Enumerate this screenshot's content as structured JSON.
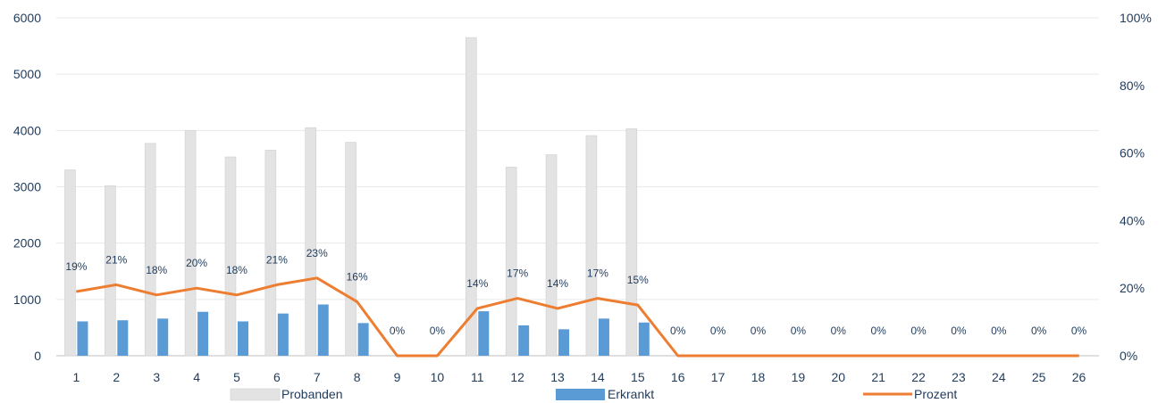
{
  "chart_data": {
    "type": "bar",
    "categories": [
      "1",
      "2",
      "3",
      "4",
      "5",
      "6",
      "7",
      "8",
      "9",
      "10",
      "11",
      "12",
      "13",
      "14",
      "15",
      "16",
      "17",
      "18",
      "19",
      "20",
      "21",
      "22",
      "23",
      "24",
      "25",
      "26"
    ],
    "series": [
      {
        "name": "Probanden",
        "kind": "bar",
        "axis": "left",
        "color": "#e3e3e3",
        "values": [
          3300,
          3020,
          3770,
          4000,
          3530,
          3650,
          4050,
          3790,
          0,
          0,
          5650,
          3350,
          3570,
          3910,
          4030,
          0,
          0,
          0,
          0,
          0,
          0,
          0,
          0,
          0,
          0,
          0
        ]
      },
      {
        "name": "Erkrankt",
        "kind": "bar",
        "axis": "left",
        "color": "#5b9bd5",
        "values": [
          610,
          630,
          660,
          780,
          610,
          750,
          910,
          580,
          0,
          0,
          790,
          540,
          470,
          660,
          590,
          0,
          0,
          0,
          0,
          0,
          0,
          0,
          0,
          0,
          0,
          0
        ]
      },
      {
        "name": "Prozent",
        "kind": "line",
        "axis": "right",
        "color": "#ed7d31",
        "values": [
          19,
          21,
          18,
          20,
          18,
          21,
          23,
          16,
          0,
          0,
          14,
          17,
          14,
          17,
          15,
          0,
          0,
          0,
          0,
          0,
          0,
          0,
          0,
          0,
          0,
          0
        ],
        "labels": [
          "19%",
          "21%",
          "18%",
          "20%",
          "18%",
          "21%",
          "23%",
          "16%",
          "0%",
          "0%",
          "14%",
          "17%",
          "14%",
          "17%",
          "15%",
          "0%",
          "0%",
          "0%",
          "0%",
          "0%",
          "0%",
          "0%",
          "0%",
          "0%",
          "0%",
          "0%"
        ]
      }
    ],
    "left_axis": {
      "min": 0,
      "max": 6000,
      "ticks": [
        "0",
        "1000",
        "2000",
        "3000",
        "4000",
        "5000",
        "6000"
      ]
    },
    "right_axis": {
      "min": 0,
      "max": 100,
      "ticks": [
        "0%",
        "20%",
        "40%",
        "60%",
        "80%",
        "100%"
      ]
    },
    "grid": true,
    "legend": "bottom"
  }
}
